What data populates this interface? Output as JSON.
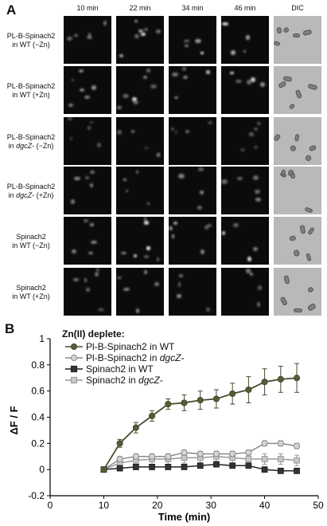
{
  "panel_a": {
    "letter": "A",
    "columns": [
      "10 min",
      "22 min",
      "34 min",
      "46 min",
      "DIC"
    ],
    "rows": [
      {
        "line1": "PL-B-Spinach2",
        "line2_plain": "in WT (−Zn)",
        "line2_italic": ""
      },
      {
        "line1": "PL-B-Spinach2",
        "line2_plain": "in WT (+Zn)",
        "line2_italic": ""
      },
      {
        "line1": "PL-B-Spinach2",
        "line2_plain": "(−Zn)",
        "line2_italic": "dgcZ-"
      },
      {
        "line1": "PL-B-Spinach2",
        "line2_plain": "(+Zn)",
        "line2_italic": "dgcZ-"
      },
      {
        "line1": "Spinach2",
        "line2_plain": "in WT (−Zn)",
        "line2_italic": ""
      },
      {
        "line1": "Spinach2",
        "line2_plain": "in WT (+Zn)",
        "line2_italic": ""
      }
    ]
  },
  "panel_b": {
    "letter": "B",
    "legend_title": "Zn(II) deplete:",
    "chart_data": {
      "type": "line",
      "xlabel": "Time (min)",
      "ylabel": "ΔF / F",
      "xlim": [
        0,
        50
      ],
      "ylim": [
        -0.2,
        1.0
      ],
      "xticks": [
        0,
        10,
        20,
        30,
        40,
        50
      ],
      "yticks": [
        -0.2,
        0,
        0.2,
        0.4,
        0.6,
        0.8,
        1
      ],
      "grid": false,
      "legend_position": "top-left",
      "x": [
        10,
        13,
        16,
        19,
        22,
        25,
        28,
        31,
        34,
        37,
        40,
        43,
        46
      ],
      "series": [
        {
          "name": "Pl-B-Spinach2 in WT",
          "label_plain": "Pl-B-Spinach2 in WT",
          "label_italic": "",
          "marker": "circle",
          "color": "#4a4a30",
          "fill": "#5a5a35",
          "values": [
            0.0,
            0.2,
            0.32,
            0.41,
            0.5,
            0.51,
            0.53,
            0.54,
            0.58,
            0.61,
            0.67,
            0.69,
            0.7
          ],
          "errors": [
            0.0,
            0.03,
            0.04,
            0.04,
            0.04,
            0.06,
            0.07,
            0.07,
            0.08,
            0.1,
            0.1,
            0.1,
            0.11
          ]
        },
        {
          "name": "Pl-B-Spinach2 in dgcZ-",
          "label_plain": "Pl-B-Spinach2 in ",
          "label_italic": "dgcZ-",
          "marker": "circle",
          "color": "#8a8a8a",
          "fill": "#d5d5d5",
          "values": [
            0.0,
            0.08,
            0.1,
            0.1,
            0.1,
            0.13,
            0.12,
            0.12,
            0.12,
            0.13,
            0.2,
            0.2,
            0.18
          ],
          "errors": [
            0.0,
            0.02,
            0.02,
            0.02,
            0.02,
            0.02,
            0.02,
            0.02,
            0.02,
            0.02,
            0.02,
            0.02,
            0.02
          ]
        },
        {
          "name": "Spinach2 in WT",
          "label_plain": "Spinach2 in WT",
          "label_italic": "",
          "marker": "square",
          "color": "#222222",
          "fill": "#333333",
          "values": [
            0.0,
            0.01,
            0.02,
            0.02,
            0.02,
            0.02,
            0.03,
            0.04,
            0.03,
            0.03,
            0.0,
            -0.01,
            -0.01
          ],
          "errors": [
            0.0,
            0.02,
            0.02,
            0.02,
            0.02,
            0.02,
            0.02,
            0.02,
            0.02,
            0.02,
            0.02,
            0.02,
            0.02
          ]
        },
        {
          "name": "Spinach2 in dgcZ-",
          "label_plain": "Spinach2 in ",
          "label_italic": "dgcZ-",
          "marker": "square",
          "color": "#999999",
          "fill": "#c8c8c8",
          "values": [
            0.0,
            0.05,
            0.07,
            0.08,
            0.08,
            0.09,
            0.09,
            0.1,
            0.09,
            0.08,
            0.08,
            0.08,
            0.07
          ],
          "errors": [
            0.0,
            0.03,
            0.04,
            0.04,
            0.04,
            0.04,
            0.04,
            0.04,
            0.04,
            0.04,
            0.04,
            0.04,
            0.04
          ]
        }
      ]
    }
  }
}
